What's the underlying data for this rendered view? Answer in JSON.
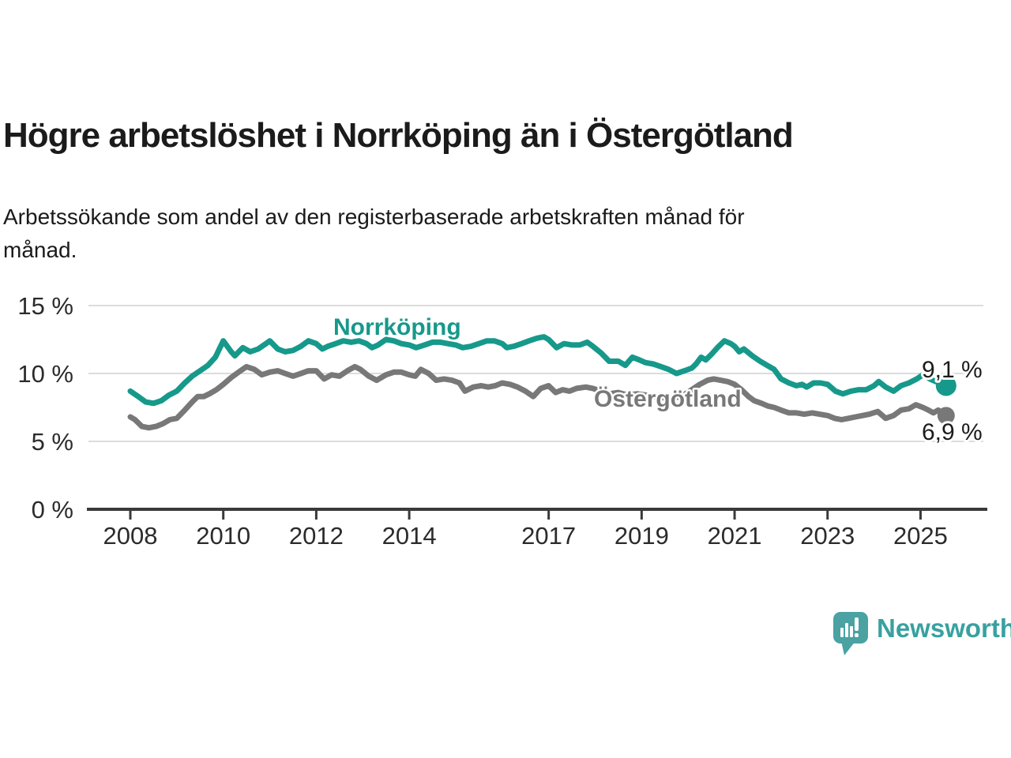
{
  "header": {
    "title": "Högre arbetslöshet i Norrköping än i Östergötland",
    "subtitle": "Arbetssökande som andel av den registerbaserade arbetskraften månad för\nmånad."
  },
  "chart_data": {
    "type": "line",
    "unit": "%",
    "grid": true,
    "legend_position": "inline-labels",
    "x_axis": {
      "ticks": [
        2008,
        2010,
        2012,
        2014,
        2017,
        2019,
        2021,
        2023,
        2025
      ],
      "labels": [
        "2008",
        "2010",
        "2012",
        "2014",
        "2017",
        "2019",
        "2021",
        "2023",
        "2025"
      ],
      "range": [
        2007.1,
        2026.4
      ]
    },
    "y_axis": {
      "ticks": [
        0,
        5,
        10,
        15
      ],
      "labels": [
        "0 %",
        "5 %",
        "10 %",
        "15 %"
      ],
      "range": [
        0,
        15
      ]
    },
    "series": [
      {
        "name": "Norrköping",
        "color": "#16998a",
        "end_value": 9.1,
        "end_label": "9,1 %",
        "points": [
          [
            2008.0,
            8.7
          ],
          [
            2008.17,
            8.3
          ],
          [
            2008.33,
            7.9
          ],
          [
            2008.5,
            7.8
          ],
          [
            2008.67,
            8.0
          ],
          [
            2008.83,
            8.4
          ],
          [
            2009.0,
            8.7
          ],
          [
            2009.17,
            9.3
          ],
          [
            2009.33,
            9.8
          ],
          [
            2009.5,
            10.2
          ],
          [
            2009.67,
            10.6
          ],
          [
            2009.83,
            11.2
          ],
          [
            2010.0,
            12.4
          ],
          [
            2010.17,
            11.6
          ],
          [
            2010.25,
            11.3
          ],
          [
            2010.42,
            11.9
          ],
          [
            2010.58,
            11.6
          ],
          [
            2010.75,
            11.8
          ],
          [
            2010.92,
            12.2
          ],
          [
            2011.0,
            12.4
          ],
          [
            2011.17,
            11.8
          ],
          [
            2011.33,
            11.6
          ],
          [
            2011.5,
            11.7
          ],
          [
            2011.67,
            12.0
          ],
          [
            2011.83,
            12.4
          ],
          [
            2012.0,
            12.2
          ],
          [
            2012.13,
            11.8
          ],
          [
            2012.25,
            12.0
          ],
          [
            2012.42,
            12.2
          ],
          [
            2012.58,
            12.4
          ],
          [
            2012.75,
            12.3
          ],
          [
            2012.92,
            12.4
          ],
          [
            2013.08,
            12.2
          ],
          [
            2013.2,
            11.9
          ],
          [
            2013.33,
            12.1
          ],
          [
            2013.5,
            12.5
          ],
          [
            2013.67,
            12.4
          ],
          [
            2013.83,
            12.2
          ],
          [
            2014.0,
            12.1
          ],
          [
            2014.15,
            11.9
          ],
          [
            2014.33,
            12.1
          ],
          [
            2014.5,
            12.3
          ],
          [
            2014.67,
            12.3
          ],
          [
            2014.83,
            12.2
          ],
          [
            2015.0,
            12.1
          ],
          [
            2015.15,
            11.9
          ],
          [
            2015.33,
            12.0
          ],
          [
            2015.5,
            12.2
          ],
          [
            2015.67,
            12.4
          ],
          [
            2015.83,
            12.4
          ],
          [
            2016.0,
            12.2
          ],
          [
            2016.1,
            11.9
          ],
          [
            2016.25,
            12.0
          ],
          [
            2016.42,
            12.2
          ],
          [
            2016.58,
            12.4
          ],
          [
            2016.75,
            12.6
          ],
          [
            2016.9,
            12.7
          ],
          [
            2017.0,
            12.5
          ],
          [
            2017.17,
            11.9
          ],
          [
            2017.33,
            12.2
          ],
          [
            2017.5,
            12.1
          ],
          [
            2017.67,
            12.1
          ],
          [
            2017.83,
            12.3
          ],
          [
            2017.95,
            12.0
          ],
          [
            2018.13,
            11.5
          ],
          [
            2018.3,
            10.9
          ],
          [
            2018.5,
            10.9
          ],
          [
            2018.65,
            10.6
          ],
          [
            2018.8,
            11.2
          ],
          [
            2018.95,
            11.0
          ],
          [
            2019.08,
            10.8
          ],
          [
            2019.25,
            10.7
          ],
          [
            2019.42,
            10.5
          ],
          [
            2019.58,
            10.3
          ],
          [
            2019.75,
            10.0
          ],
          [
            2019.92,
            10.2
          ],
          [
            2020.08,
            10.4
          ],
          [
            2020.17,
            10.7
          ],
          [
            2020.28,
            11.2
          ],
          [
            2020.38,
            11.0
          ],
          [
            2020.5,
            11.4
          ],
          [
            2020.63,
            11.9
          ],
          [
            2020.78,
            12.4
          ],
          [
            2020.92,
            12.2
          ],
          [
            2021.0,
            12.0
          ],
          [
            2021.1,
            11.6
          ],
          [
            2021.2,
            11.8
          ],
          [
            2021.38,
            11.3
          ],
          [
            2021.55,
            10.9
          ],
          [
            2021.7,
            10.6
          ],
          [
            2021.85,
            10.3
          ],
          [
            2022.0,
            9.6
          ],
          [
            2022.17,
            9.3
          ],
          [
            2022.33,
            9.1
          ],
          [
            2022.45,
            9.2
          ],
          [
            2022.55,
            9.0
          ],
          [
            2022.7,
            9.3
          ],
          [
            2022.85,
            9.3
          ],
          [
            2023.0,
            9.2
          ],
          [
            2023.17,
            8.7
          ],
          [
            2023.33,
            8.5
          ],
          [
            2023.5,
            8.7
          ],
          [
            2023.67,
            8.8
          ],
          [
            2023.83,
            8.8
          ],
          [
            2024.0,
            9.1
          ],
          [
            2024.1,
            9.4
          ],
          [
            2024.25,
            9.0
          ],
          [
            2024.42,
            8.7
          ],
          [
            2024.58,
            9.1
          ],
          [
            2024.75,
            9.3
          ],
          [
            2024.92,
            9.6
          ],
          [
            2025.05,
            9.9
          ],
          [
            2025.2,
            9.6
          ],
          [
            2025.33,
            9.4
          ],
          [
            2025.45,
            9.5
          ],
          [
            2025.55,
            9.1
          ]
        ]
      },
      {
        "name": "Östergötland",
        "color": "#787878",
        "end_value": 6.9,
        "end_label": "6,9 %",
        "points": [
          [
            2008.0,
            6.8
          ],
          [
            2008.1,
            6.6
          ],
          [
            2008.25,
            6.1
          ],
          [
            2008.4,
            6.0
          ],
          [
            2008.55,
            6.1
          ],
          [
            2008.7,
            6.3
          ],
          [
            2008.85,
            6.6
          ],
          [
            2009.0,
            6.7
          ],
          [
            2009.17,
            7.3
          ],
          [
            2009.33,
            7.9
          ],
          [
            2009.45,
            8.3
          ],
          [
            2009.58,
            8.3
          ],
          [
            2009.7,
            8.5
          ],
          [
            2009.85,
            8.8
          ],
          [
            2010.0,
            9.2
          ],
          [
            2010.17,
            9.7
          ],
          [
            2010.33,
            10.1
          ],
          [
            2010.5,
            10.5
          ],
          [
            2010.67,
            10.3
          ],
          [
            2010.83,
            9.9
          ],
          [
            2011.0,
            10.1
          ],
          [
            2011.17,
            10.2
          ],
          [
            2011.33,
            10.0
          ],
          [
            2011.5,
            9.8
          ],
          [
            2011.67,
            10.0
          ],
          [
            2011.83,
            10.2
          ],
          [
            2012.0,
            10.2
          ],
          [
            2012.17,
            9.6
          ],
          [
            2012.33,
            9.9
          ],
          [
            2012.5,
            9.8
          ],
          [
            2012.67,
            10.2
          ],
          [
            2012.83,
            10.5
          ],
          [
            2012.95,
            10.3
          ],
          [
            2013.13,
            9.8
          ],
          [
            2013.3,
            9.5
          ],
          [
            2013.5,
            9.9
          ],
          [
            2013.67,
            10.1
          ],
          [
            2013.83,
            10.1
          ],
          [
            2014.0,
            9.9
          ],
          [
            2014.13,
            9.8
          ],
          [
            2014.25,
            10.3
          ],
          [
            2014.42,
            10.0
          ],
          [
            2014.58,
            9.5
          ],
          [
            2014.75,
            9.6
          ],
          [
            2014.92,
            9.5
          ],
          [
            2015.08,
            9.3
          ],
          [
            2015.2,
            8.7
          ],
          [
            2015.38,
            9.0
          ],
          [
            2015.55,
            9.1
          ],
          [
            2015.7,
            9.0
          ],
          [
            2015.85,
            9.1
          ],
          [
            2016.0,
            9.3
          ],
          [
            2016.17,
            9.2
          ],
          [
            2016.33,
            9.0
          ],
          [
            2016.5,
            8.7
          ],
          [
            2016.67,
            8.3
          ],
          [
            2016.83,
            8.9
          ],
          [
            2017.0,
            9.1
          ],
          [
            2017.15,
            8.6
          ],
          [
            2017.3,
            8.8
          ],
          [
            2017.45,
            8.7
          ],
          [
            2017.6,
            8.9
          ],
          [
            2017.8,
            9.0
          ],
          [
            2017.95,
            8.9
          ],
          [
            2018.13,
            8.7
          ],
          [
            2018.3,
            8.5
          ],
          [
            2018.5,
            8.6
          ],
          [
            2018.7,
            8.4
          ],
          [
            2018.9,
            8.5
          ],
          [
            2019.1,
            8.4
          ],
          [
            2019.3,
            8.3
          ],
          [
            2019.5,
            8.2
          ],
          [
            2019.7,
            8.2
          ],
          [
            2019.9,
            8.4
          ],
          [
            2020.08,
            8.8
          ],
          [
            2020.25,
            9.2
          ],
          [
            2020.42,
            9.5
          ],
          [
            2020.55,
            9.6
          ],
          [
            2020.7,
            9.5
          ],
          [
            2020.85,
            9.4
          ],
          [
            2021.0,
            9.2
          ],
          [
            2021.15,
            8.8
          ],
          [
            2021.3,
            8.3
          ],
          [
            2021.42,
            8.0
          ],
          [
            2021.58,
            7.8
          ],
          [
            2021.72,
            7.6
          ],
          [
            2021.85,
            7.5
          ],
          [
            2022.0,
            7.3
          ],
          [
            2022.17,
            7.1
          ],
          [
            2022.33,
            7.1
          ],
          [
            2022.5,
            7.0
          ],
          [
            2022.67,
            7.1
          ],
          [
            2022.83,
            7.0
          ],
          [
            2023.0,
            6.9
          ],
          [
            2023.15,
            6.7
          ],
          [
            2023.3,
            6.6
          ],
          [
            2023.45,
            6.7
          ],
          [
            2023.6,
            6.8
          ],
          [
            2023.75,
            6.9
          ],
          [
            2023.9,
            7.0
          ],
          [
            2024.08,
            7.2
          ],
          [
            2024.25,
            6.7
          ],
          [
            2024.42,
            6.9
          ],
          [
            2024.58,
            7.3
          ],
          [
            2024.75,
            7.4
          ],
          [
            2024.9,
            7.7
          ],
          [
            2025.05,
            7.5
          ],
          [
            2025.17,
            7.3
          ],
          [
            2025.28,
            7.1
          ],
          [
            2025.38,
            7.3
          ],
          [
            2025.48,
            7.1
          ],
          [
            2025.55,
            6.9
          ]
        ]
      }
    ]
  },
  "footer": {
    "brand": "Newsworthy",
    "logo_icon": "bar-chart-speech-bubble-icon",
    "brand_color": "#38a1a0",
    "logo_fill": "#4aa2a2"
  }
}
